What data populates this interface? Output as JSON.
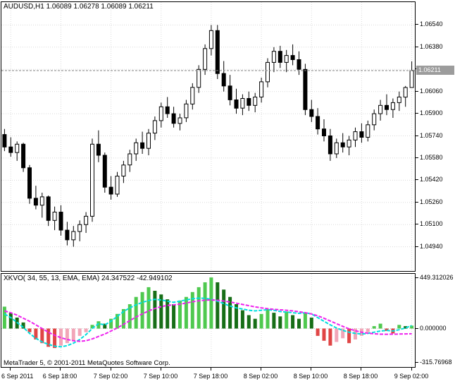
{
  "header": {
    "title": "AUDUSD,H1 1.06089 1.06278 1.06089 1.06211"
  },
  "footer": {
    "copyright": "MetaTrader 5, © 2001-2011 MetaQuotes Software Corp."
  },
  "colors": {
    "background": "#FFFFFF",
    "border": "#000000",
    "grid": "#DADADA",
    "candle_up_fill": "#FFFFFF",
    "candle_down_fill": "#000000",
    "candle_outline": "#000000",
    "price_marker_bg": "#9C9C9C",
    "price_marker_text": "#FFFFFF",
    "price_line": "#808080"
  },
  "chart_data": [
    {
      "type": "candlestick",
      "symbol": "AUDUSD",
      "timeframe": "H1",
      "ohlc_display": {
        "open": "1.06089",
        "high": "1.06278",
        "low": "1.06089",
        "close": "1.06211"
      },
      "current_price": "1.06211",
      "y_axis": {
        "max": 1.06705,
        "min": 1.04765,
        "labels": [
          "1.06540",
          "1.06380",
          "1.06220",
          "1.06060",
          "1.05900",
          "1.05740",
          "1.05580",
          "1.05420",
          "1.05260",
          "1.05100",
          "1.04940"
        ]
      },
      "x_axis": {
        "labels": [
          "6 Sep 2011",
          "6 Sep 18:00",
          "7 Sep 02:00",
          "7 Sep 10:00",
          "7 Sep 18:00",
          "8 Sep 02:00",
          "8 Sep 10:00",
          "8 Sep 18:00",
          "9 Sep 02:00"
        ],
        "tick_indices": [
          1,
          9,
          17,
          25,
          33,
          41,
          49,
          57,
          65
        ]
      },
      "candles": [
        [
          1.0575,
          1.0579,
          1.0563,
          1.0566
        ],
        [
          1.0566,
          1.0573,
          1.0559,
          1.0562
        ],
        [
          1.0562,
          1.057,
          1.0556,
          1.0568
        ],
        [
          1.0568,
          1.0569,
          1.0548,
          1.0551
        ],
        [
          1.0551,
          1.0553,
          1.0525,
          1.0529
        ],
        [
          1.0529,
          1.0538,
          1.0521,
          1.0524
        ],
        [
          1.0524,
          1.0533,
          1.0515,
          1.053
        ],
        [
          1.053,
          1.0531,
          1.0509,
          1.0513
        ],
        [
          1.0513,
          1.0523,
          1.0506,
          1.0519
        ],
        [
          1.0519,
          1.0524,
          1.0502,
          1.0506
        ],
        [
          1.0506,
          1.0512,
          1.0495,
          1.0499
        ],
        [
          1.0499,
          1.0509,
          1.0494,
          1.0505
        ],
        [
          1.0505,
          1.0513,
          1.0498,
          1.051
        ],
        [
          1.051,
          1.0519,
          1.0504,
          1.0516
        ],
        [
          1.0516,
          1.0572,
          1.0512,
          1.0568
        ],
        [
          1.0568,
          1.0578,
          1.0555,
          1.056
        ],
        [
          1.056,
          1.0562,
          1.0533,
          1.0537
        ],
        [
          1.0537,
          1.0545,
          1.0528,
          1.0532
        ],
        [
          1.0532,
          1.0548,
          1.053,
          1.0545
        ],
        [
          1.0545,
          1.0556,
          1.054,
          1.0553
        ],
        [
          1.0553,
          1.0564,
          1.0548,
          1.0561
        ],
        [
          1.0561,
          1.0572,
          1.0556,
          1.0569
        ],
        [
          1.0569,
          1.0577,
          1.0561,
          1.0565
        ],
        [
          1.0565,
          1.0579,
          1.056,
          1.0576
        ],
        [
          1.0576,
          1.0588,
          1.0571,
          1.0585
        ],
        [
          1.0585,
          1.0598,
          1.058,
          1.0595
        ],
        [
          1.0595,
          1.0602,
          1.0587,
          1.059
        ],
        [
          1.059,
          1.0595,
          1.058,
          1.0583
        ],
        [
          1.0583,
          1.059,
          1.0578,
          1.0587
        ],
        [
          1.0587,
          1.06,
          1.0584,
          1.0597
        ],
        [
          1.0597,
          1.0612,
          1.0593,
          1.0609
        ],
        [
          1.0609,
          1.0625,
          1.0605,
          1.0622
        ],
        [
          1.0622,
          1.064,
          1.0618,
          1.0637
        ],
        [
          1.0637,
          1.0654,
          1.0632,
          1.065
        ],
        [
          1.065,
          1.0654,
          1.0615,
          1.0619
        ],
        [
          1.0619,
          1.0628,
          1.0606,
          1.061
        ],
        [
          1.061,
          1.0618,
          1.0596,
          1.06
        ],
        [
          1.06,
          1.0608,
          1.059,
          1.0594
        ],
        [
          1.0594,
          1.0604,
          1.0589,
          1.0601
        ],
        [
          1.0601,
          1.0606,
          1.0592,
          1.0596
        ],
        [
          1.0596,
          1.0605,
          1.0591,
          1.0602
        ],
        [
          1.0602,
          1.0616,
          1.0598,
          1.0613
        ],
        [
          1.0613,
          1.063,
          1.0609,
          1.0627
        ],
        [
          1.0627,
          1.0638,
          1.062,
          1.0635
        ],
        [
          1.0635,
          1.0639,
          1.0623,
          1.0627
        ],
        [
          1.0627,
          1.0636,
          1.062,
          1.0632
        ],
        [
          1.0632,
          1.064,
          1.0625,
          1.0629
        ],
        [
          1.0629,
          1.0635,
          1.0618,
          1.0622
        ],
        [
          1.0622,
          1.0626,
          1.0589,
          1.0593
        ],
        [
          1.0593,
          1.06,
          1.0584,
          1.0588
        ],
        [
          1.0588,
          1.0594,
          1.0575,
          1.0579
        ],
        [
          1.0579,
          1.0586,
          1.057,
          1.0574
        ],
        [
          1.0574,
          1.0579,
          1.0556,
          1.0561
        ],
        [
          1.0561,
          1.0572,
          1.0558,
          1.0569
        ],
        [
          1.0569,
          1.0576,
          1.0562,
          1.0566
        ],
        [
          1.0566,
          1.0574,
          1.056,
          1.0571
        ],
        [
          1.0571,
          1.058,
          1.0566,
          1.0577
        ],
        [
          1.0577,
          1.0583,
          1.0569,
          1.0573
        ],
        [
          1.0573,
          1.0585,
          1.057,
          1.0582
        ],
        [
          1.0582,
          1.0593,
          1.0578,
          1.059
        ],
        [
          1.059,
          1.06,
          1.0585,
          1.0596
        ],
        [
          1.0596,
          1.0604,
          1.0589,
          1.0593
        ],
        [
          1.0593,
          1.0601,
          1.0587,
          1.0598
        ],
        [
          1.0598,
          1.0606,
          1.0592,
          1.0602
        ],
        [
          1.0602,
          1.061,
          1.0595,
          1.06089
        ],
        [
          1.06089,
          1.06278,
          1.06089,
          1.06211
        ]
      ]
    },
    {
      "type": "bar",
      "name": "XKVO",
      "title": "XKVO( 34, 55, 13, EMA, EMA) 24.347522 -42.949102",
      "values_display": [
        "24.347522",
        "-42.949102"
      ],
      "y_axis": {
        "max": 449.312026,
        "min": -315.76968,
        "labels": [
          "449.312026",
          "0.000000",
          "-315.76968"
        ],
        "label_values": [
          449.312026,
          0,
          -315.76968
        ]
      },
      "colors": {
        "up_rising": "#4FC94F",
        "up_falling": "#176E17",
        "down_falling": "#E04545",
        "down_rising": "#F2A6B8"
      },
      "histogram": [
        180,
        130,
        90,
        50,
        -30,
        -90,
        -120,
        -150,
        -160,
        -140,
        -120,
        -100,
        -60,
        -30,
        30,
        60,
        40,
        80,
        120,
        160,
        200,
        260,
        300,
        340,
        310,
        280,
        240,
        200,
        230,
        260,
        300,
        340,
        380,
        420,
        380,
        320,
        260,
        200,
        150,
        110,
        80,
        120,
        160,
        130,
        100,
        140,
        110,
        80,
        130,
        90,
        -60,
        -100,
        -140,
        -110,
        -80,
        -120,
        -90,
        -60,
        -30,
        20,
        40,
        -20,
        -40,
        30,
        20,
        24
      ],
      "series": [
        {
          "name": "XKVO fast",
          "color": "#00DEDE",
          "values": [
            120,
            90,
            50,
            10,
            -40,
            -80,
            -110,
            -130,
            -145,
            -150,
            -140,
            -120,
            -90,
            -50,
            0,
            40,
            30,
            60,
            100,
            140,
            170,
            195,
            215,
            230,
            240,
            235,
            225,
            215,
            225,
            235,
            245,
            250,
            248,
            240,
            225,
            205,
            185,
            170,
            160,
            150,
            145,
            150,
            155,
            150,
            140,
            135,
            130,
            125,
            130,
            120,
            90,
            60,
            30,
            5,
            -15,
            -30,
            -40,
            -45,
            -40,
            -30,
            -20,
            -15,
            -20,
            -10,
            5,
            24.347522
          ]
        },
        {
          "name": "XKVO signal",
          "color": "#EE22EE",
          "values": [
            145,
            130,
            110,
            85,
            60,
            30,
            0,
            -30,
            -55,
            -75,
            -90,
            -100,
            -105,
            -100,
            -85,
            -65,
            -45,
            -20,
            5,
            35,
            65,
            95,
            120,
            145,
            165,
            180,
            190,
            195,
            200,
            210,
            220,
            228,
            233,
            235,
            232,
            226,
            218,
            208,
            198,
            188,
            178,
            170,
            163,
            158,
            154,
            150,
            145,
            138,
            130,
            120,
            105,
            85,
            62,
            40,
            18,
            -2,
            -18,
            -30,
            -38,
            -43,
            -46,
            -47,
            -46,
            -45,
            -44,
            -42.949102
          ]
        }
      ]
    }
  ]
}
